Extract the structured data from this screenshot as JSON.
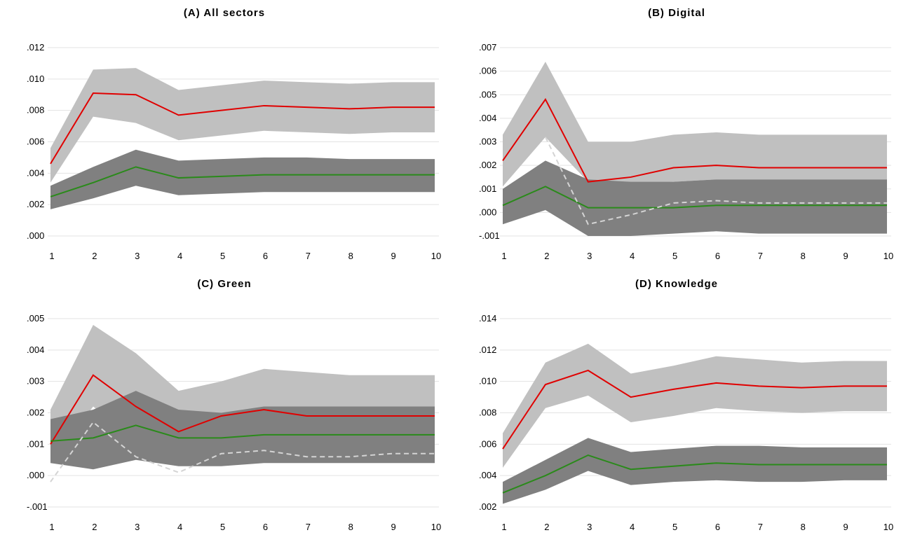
{
  "colors": {
    "outer_band": "#c0c0c0",
    "inner_band": "#808080",
    "upper_line": "#e00000",
    "lower_line": "#2a8a1a",
    "dashed_line": "#d4d4d4",
    "grid": "#e3e3e3"
  },
  "chart_data": [
    {
      "type": "line",
      "title": "(A) All sectors",
      "x": [
        1,
        2,
        3,
        4,
        5,
        6,
        7,
        8,
        9,
        10
      ],
      "x_ticks": [
        "1",
        "2",
        "3",
        "4",
        "5",
        "6",
        "7",
        "8",
        "9",
        "10"
      ],
      "ylim": [
        0.0,
        0.012
      ],
      "y_ticks": [
        0.0,
        0.002,
        0.004,
        0.006,
        0.008,
        0.01,
        0.012
      ],
      "y_tick_labels": [
        ".000",
        ".002",
        ".004",
        ".006",
        ".008",
        ".010",
        ".012"
      ],
      "grid": true,
      "bands": [
        {
          "lower": [
            0.0034,
            0.0076,
            0.0072,
            0.0061,
            0.0064,
            0.0067,
            0.0066,
            0.0065,
            0.0066,
            0.0066
          ],
          "upper": [
            0.0056,
            0.0106,
            0.0107,
            0.0093,
            0.0096,
            0.0099,
            0.0098,
            0.0097,
            0.0098,
            0.0098
          ],
          "style": "outer"
        },
        {
          "lower": [
            0.0017,
            0.0024,
            0.0032,
            0.0026,
            0.0027,
            0.0028,
            0.0028,
            0.0028,
            0.0028,
            0.0028
          ],
          "upper": [
            0.0032,
            0.0044,
            0.0055,
            0.0048,
            0.0049,
            0.005,
            0.005,
            0.0049,
            0.0049,
            0.0049
          ],
          "style": "inner"
        }
      ],
      "series": [
        {
          "values": [
            0.0046,
            0.0091,
            0.009,
            0.0077,
            0.008,
            0.0083,
            0.0082,
            0.0081,
            0.0082,
            0.0082
          ],
          "style": "upper"
        },
        {
          "values": [
            0.0025,
            0.0034,
            0.0044,
            0.0037,
            0.0038,
            0.0039,
            0.0039,
            0.0039,
            0.0039,
            0.0039
          ],
          "style": "lower"
        }
      ]
    },
    {
      "type": "line",
      "title": "(B) Digital",
      "x": [
        1,
        2,
        3,
        4,
        5,
        6,
        7,
        8,
        9,
        10
      ],
      "x_ticks": [
        "1",
        "2",
        "3",
        "4",
        "5",
        "6",
        "7",
        "8",
        "9",
        "10"
      ],
      "ylim": [
        -0.001,
        0.007
      ],
      "y_ticks": [
        -0.001,
        0.0,
        0.001,
        0.002,
        0.003,
        0.004,
        0.005,
        0.006,
        0.007
      ],
      "y_tick_labels": [
        "-.001",
        ".000",
        ".001",
        ".002",
        ".003",
        ".004",
        ".005",
        ".006",
        ".007"
      ],
      "grid": true,
      "bands": [
        {
          "lower": [
            0.0011,
            0.0032,
            0.0013,
            0.0012,
            0.0013,
            0.0014,
            0.0014,
            0.0014,
            0.0014,
            0.0014
          ],
          "upper": [
            0.0033,
            0.0064,
            0.003,
            0.003,
            0.0033,
            0.0034,
            0.0033,
            0.0033,
            0.0033,
            0.0033
          ],
          "style": "outer"
        },
        {
          "lower": [
            -0.0005,
            0.0001,
            -0.001,
            -0.001,
            -0.0009,
            -0.0008,
            -0.0009,
            -0.0009,
            -0.0009,
            -0.0009
          ],
          "upper": [
            0.001,
            0.0022,
            0.0014,
            0.0013,
            0.0013,
            0.0014,
            0.0014,
            0.0014,
            0.0014,
            0.0014
          ],
          "style": "inner"
        }
      ],
      "series": [
        {
          "values": [
            0.0022,
            0.0048,
            0.0013,
            0.0015,
            0.0019,
            0.002,
            0.0019,
            0.0019,
            0.0019,
            0.0019
          ],
          "style": "upper"
        },
        {
          "values": [
            0.0003,
            0.0011,
            0.0002,
            0.0002,
            0.0002,
            0.0003,
            0.0003,
            0.0003,
            0.0003,
            0.0003
          ],
          "style": "lower"
        },
        {
          "values": [
            null,
            0.0032,
            -0.0005,
            -0.0001,
            0.0004,
            0.0005,
            0.0004,
            0.0004,
            0.0004,
            0.0004
          ],
          "style": "dashed"
        }
      ]
    },
    {
      "type": "line",
      "title": "(C) Green",
      "x": [
        1,
        2,
        3,
        4,
        5,
        6,
        7,
        8,
        9,
        10
      ],
      "x_ticks": [
        "1",
        "2",
        "3",
        "4",
        "5",
        "6",
        "7",
        "8",
        "9",
        "10"
      ],
      "ylim": [
        -0.001,
        0.005
      ],
      "y_ticks": [
        -0.001,
        0.0,
        0.001,
        0.002,
        0.003,
        0.004,
        0.005
      ],
      "y_tick_labels": [
        "-.001",
        ".000",
        ".001",
        ".002",
        ".003",
        ".004",
        ".005"
      ],
      "grid": true,
      "bands": [
        {
          "lower": [
            0.0004,
            0.0022,
            0.0011,
            0.0004,
            0.001,
            0.0013,
            0.0012,
            0.0012,
            0.0012,
            0.0012
          ],
          "upper": [
            0.0021,
            0.0048,
            0.0039,
            0.0027,
            0.003,
            0.0034,
            0.0033,
            0.0032,
            0.0032,
            0.0032
          ],
          "style": "outer"
        },
        {
          "lower": [
            0.0004,
            0.0002,
            0.0005,
            0.0003,
            0.0003,
            0.0004,
            0.0004,
            0.0004,
            0.0004,
            0.0004
          ],
          "upper": [
            0.0018,
            0.0021,
            0.0027,
            0.0021,
            0.002,
            0.0022,
            0.0022,
            0.0022,
            0.0022,
            0.0022
          ],
          "style": "inner"
        }
      ],
      "series": [
        {
          "values": [
            0.001,
            0.0032,
            0.0022,
            0.0014,
            0.0019,
            0.0021,
            0.0019,
            0.0019,
            0.0019,
            0.0019
          ],
          "style": "upper"
        },
        {
          "values": [
            0.0011,
            0.0012,
            0.0016,
            0.0012,
            0.0012,
            0.0013,
            0.0013,
            0.0013,
            0.0013,
            0.0013
          ],
          "style": "lower"
        },
        {
          "values": [
            -0.0002,
            0.0017,
            0.0006,
            0.0001,
            0.0007,
            0.0008,
            0.0006,
            0.0006,
            0.0007,
            0.0007
          ],
          "style": "dashed"
        }
      ]
    },
    {
      "type": "line",
      "title": "(D) Knowledge",
      "x": [
        1,
        2,
        3,
        4,
        5,
        6,
        7,
        8,
        9,
        10
      ],
      "x_ticks": [
        "1",
        "2",
        "3",
        "4",
        "5",
        "6",
        "7",
        "8",
        "9",
        "10"
      ],
      "ylim": [
        0.002,
        0.014
      ],
      "y_ticks": [
        0.002,
        0.004,
        0.006,
        0.008,
        0.01,
        0.012,
        0.014
      ],
      "y_tick_labels": [
        ".002",
        ".004",
        ".006",
        ".008",
        ".010",
        ".012",
        ".014"
      ],
      "grid": true,
      "bands": [
        {
          "lower": [
            0.0045,
            0.0083,
            0.0091,
            0.0074,
            0.0078,
            0.0083,
            0.0081,
            0.008,
            0.0081,
            0.0081
          ],
          "upper": [
            0.0067,
            0.0112,
            0.0124,
            0.0105,
            0.011,
            0.0116,
            0.0114,
            0.0112,
            0.0113,
            0.0113
          ],
          "style": "outer"
        },
        {
          "lower": [
            0.0022,
            0.0031,
            0.0043,
            0.0034,
            0.0036,
            0.0037,
            0.0036,
            0.0036,
            0.0037,
            0.0037
          ],
          "upper": [
            0.0036,
            0.005,
            0.0064,
            0.0055,
            0.0057,
            0.0059,
            0.0059,
            0.0058,
            0.0058,
            0.0058
          ],
          "style": "inner"
        }
      ],
      "series": [
        {
          "values": [
            0.0057,
            0.0098,
            0.0107,
            0.009,
            0.0095,
            0.0099,
            0.0097,
            0.0096,
            0.0097,
            0.0097
          ],
          "style": "upper"
        },
        {
          "values": [
            0.0029,
            0.004,
            0.0053,
            0.0044,
            0.0046,
            0.0048,
            0.0047,
            0.0047,
            0.0047,
            0.0047
          ],
          "style": "lower"
        }
      ]
    }
  ]
}
